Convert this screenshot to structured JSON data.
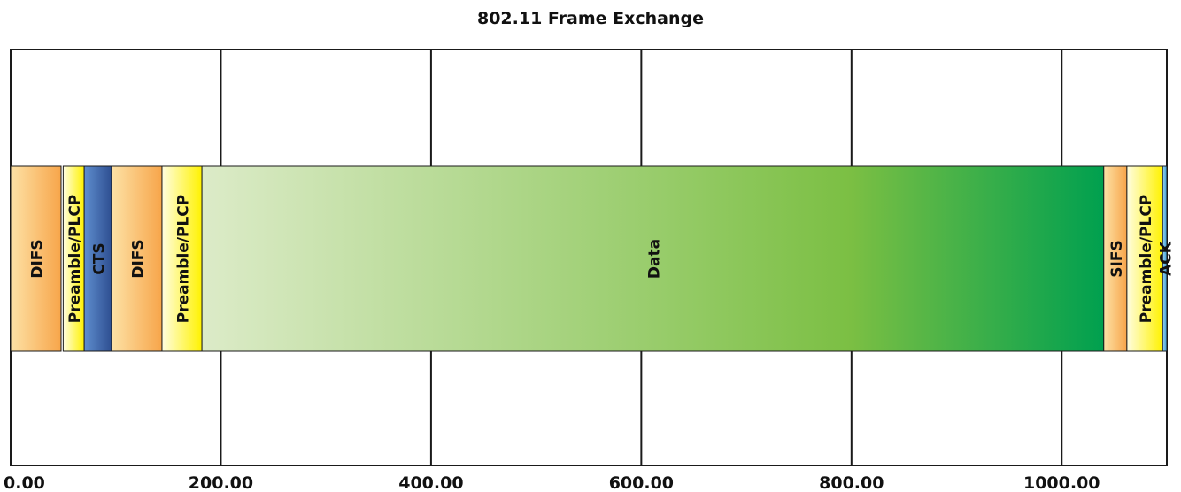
{
  "chart_data": {
    "type": "bar",
    "title": "802.11 Frame Exchange",
    "xlabel": "",
    "ylabel": "",
    "xlim": [
      0,
      1100
    ],
    "x_ticks": [
      0,
      200,
      400,
      600,
      800,
      1000
    ],
    "x_tick_labels": [
      "0.00",
      "200.00",
      "400.00",
      "600.00",
      "800.00",
      "1000.00"
    ],
    "grid": true,
    "legend": "none",
    "segments": [
      {
        "label": "DIFS",
        "start": 0,
        "end": 48,
        "color_from": "#fde2a6",
        "color_to": "#f7a54a"
      },
      {
        "label": "Preamble/PLCP",
        "start": 50,
        "end": 70,
        "color_from": "#fffde0",
        "color_to": "#fff200"
      },
      {
        "label": "CTS",
        "start": 70,
        "end": 96,
        "color_from": "#5f8ecf",
        "color_to": "#2e4f91"
      },
      {
        "label": "DIFS",
        "start": 96,
        "end": 144,
        "color_from": "#fde2a6",
        "color_to": "#f7a54a"
      },
      {
        "label": "Preamble/PLCP",
        "start": 144,
        "end": 182,
        "color_from": "#fffde0",
        "color_to": "#fff200"
      },
      {
        "label": "Data",
        "start": 182,
        "end": 1040,
        "color_from": "#dcebc8",
        "color_mid": "#7bbf43",
        "color_to": "#00a04f"
      },
      {
        "label": "SIFS",
        "start": 1040,
        "end": 1062,
        "color_from": "#fde2a6",
        "color_to": "#f7a54a"
      },
      {
        "label": "Preamble/PLCP",
        "start": 1062,
        "end": 1096,
        "color_from": "#fffde0",
        "color_to": "#fff200"
      },
      {
        "label": "ACK",
        "start": 1096,
        "end": 1100,
        "color_from": "#9fd3f0",
        "color_to": "#3a9fd6"
      }
    ]
  }
}
